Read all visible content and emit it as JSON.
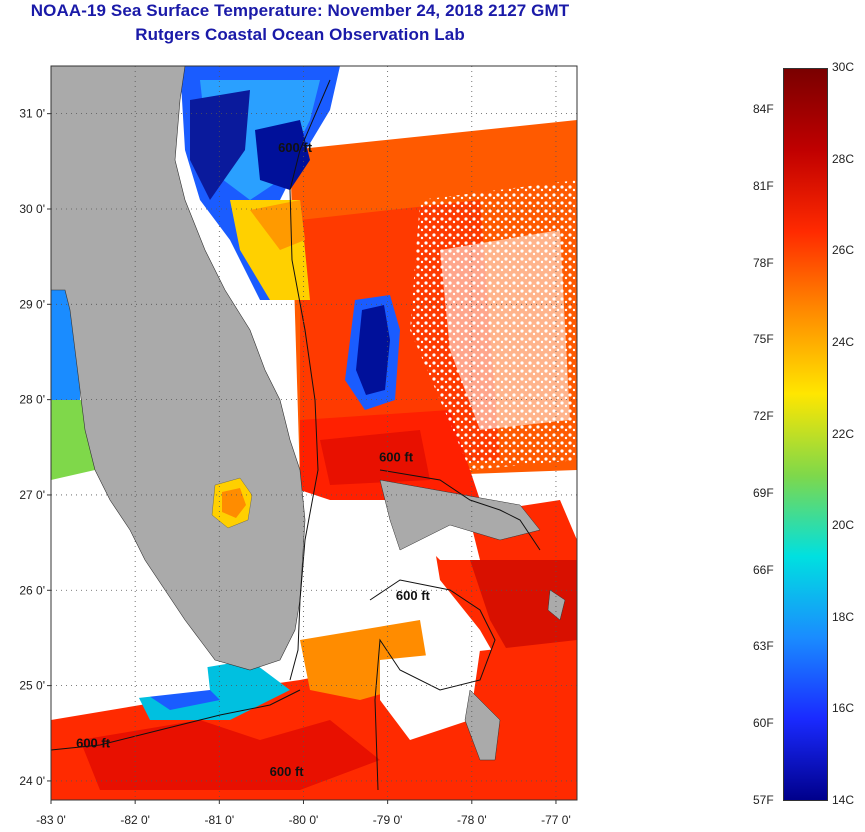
{
  "header": {
    "title": "NOAA-19 Sea Surface Temperature:  November 24, 2018 2127 GMT",
    "subtitle": "Rutgers Coastal Ocean Observation Lab"
  },
  "map": {
    "lat_range": [
      23.8,
      31.5
    ],
    "lon_range": [
      -83.0,
      -76.75
    ],
    "lat_ticks": [
      {
        "value": 24,
        "label": "24 0'"
      },
      {
        "value": 25,
        "label": "25 0'"
      },
      {
        "value": 26,
        "label": "26 0'"
      },
      {
        "value": 27,
        "label": "27 0'"
      },
      {
        "value": 28,
        "label": "28 0'"
      },
      {
        "value": 29,
        "label": "29 0'"
      },
      {
        "value": 30,
        "label": "30 0'"
      },
      {
        "value": 31,
        "label": "31 0'"
      }
    ],
    "lon_ticks": [
      {
        "value": -83,
        "label": "-83 0'"
      },
      {
        "value": -82,
        "label": "-82 0'"
      },
      {
        "value": -81,
        "label": "-81 0'"
      },
      {
        "value": -80,
        "label": "-80 0'"
      },
      {
        "value": -79,
        "label": "-79 0'"
      },
      {
        "value": -78,
        "label": "-78 0'"
      },
      {
        "value": -77,
        "label": "-77 0'"
      }
    ],
    "isobath_labels": [
      {
        "text": "600 ft",
        "lat": 30.6,
        "lon": -80.1
      },
      {
        "text": "600 ft",
        "lat": 27.35,
        "lon": -78.9
      },
      {
        "text": "600 ft",
        "lat": 25.9,
        "lon": -78.7
      },
      {
        "text": "600 ft",
        "lat": 24.35,
        "lon": -82.5
      },
      {
        "text": "600 ft",
        "lat": 24.05,
        "lon": -80.2
      }
    ]
  },
  "colorbar": {
    "celsius": [
      "30C",
      "28C",
      "26C",
      "24C",
      "22C",
      "20C",
      "18C",
      "16C",
      "14C"
    ],
    "fahrenheit": [
      "84F",
      "81F",
      "78F",
      "75F",
      "72F",
      "69F",
      "66F",
      "63F",
      "60F",
      "57F"
    ],
    "colors": [
      "#7a0000",
      "#c00000",
      "#ff2a00",
      "#ff8c00",
      "#ffe600",
      "#7fd84a",
      "#00e0e0",
      "#1a8cff",
      "#1a2aff",
      "#00008b"
    ]
  }
}
